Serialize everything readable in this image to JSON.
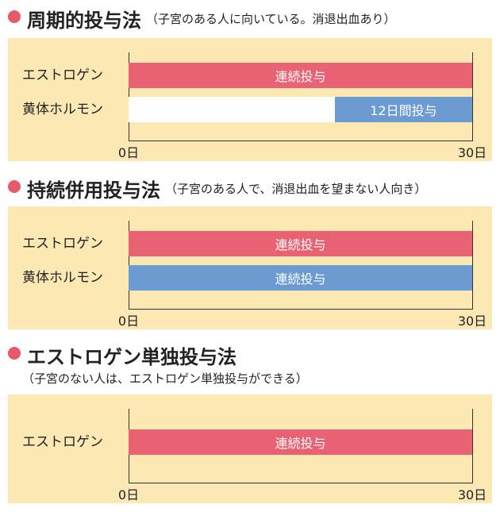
{
  "scale": {
    "min": 0,
    "max": 30
  },
  "colors": {
    "accent_dot": "#e8596a",
    "estrogen_bar": "#e96273",
    "progestin_bar": "#6b9bd1",
    "panel_bg": "#fbe8b2"
  },
  "sections": [
    {
      "title": "周期的投与法",
      "note": "（子宮のある人に向いている。消退出血あり）",
      "tick_start": "0日",
      "tick_end": "30日",
      "rows": [
        {
          "label": "エストロゲン",
          "bar_label": "連続投与",
          "start_day": 0,
          "end_day": 30
        },
        {
          "label": "黄体ホルモン",
          "bar_label": "12日間投与",
          "start_day": 18,
          "end_day": 30
        }
      ]
    },
    {
      "title": "持続併用投与法",
      "note": "（子宮のある人で、消退出血を望まない人向き）",
      "tick_start": "0日",
      "tick_end": "30日",
      "rows": [
        {
          "label": "エストロゲン",
          "bar_label": "連続投与",
          "start_day": 0,
          "end_day": 30
        },
        {
          "label": "黄体ホルモン",
          "bar_label": "連続投与",
          "start_day": 0,
          "end_day": 30
        }
      ]
    },
    {
      "title": "エストロゲン単独投与法",
      "note": "（子宮のない人は、エストロゲン単独投与ができる）",
      "tick_start": "0日",
      "tick_end": "30日",
      "rows": [
        {
          "label": "エストロゲン",
          "bar_label": "連続投与",
          "start_day": 0,
          "end_day": 30
        }
      ]
    }
  ]
}
